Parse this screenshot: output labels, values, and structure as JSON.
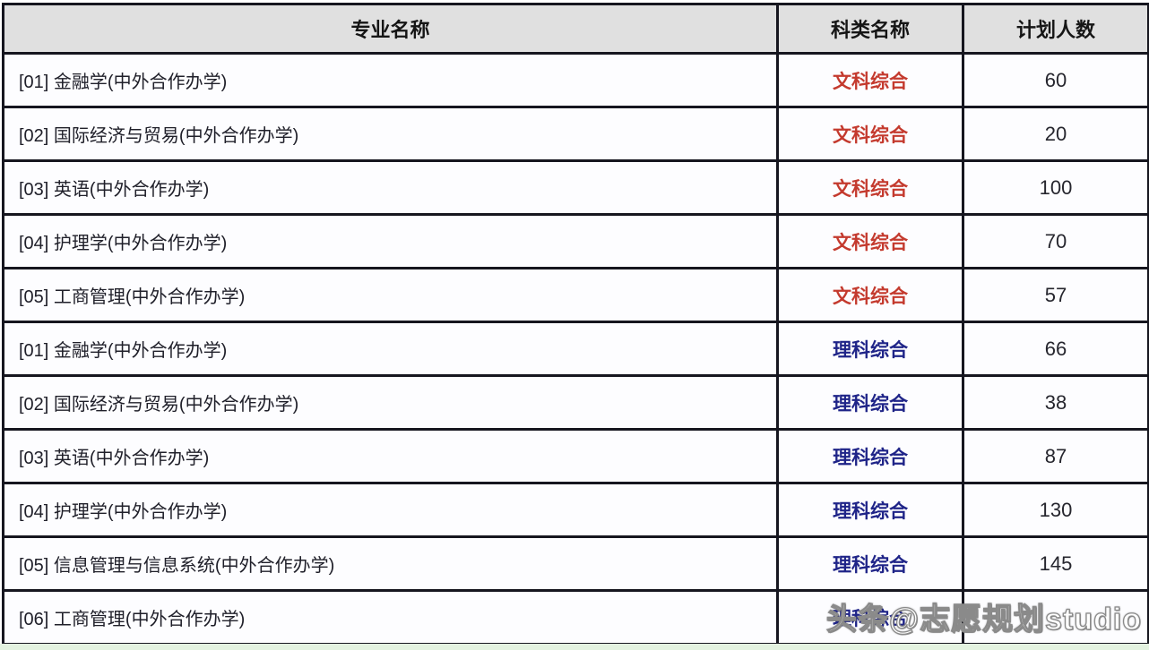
{
  "table": {
    "headers": {
      "major": "专业名称",
      "category": "科类名称",
      "plan": "计划人数"
    },
    "rows": [
      {
        "major": "[01] 金融学(中外合作办学)",
        "category": "文科综合",
        "type": "liberal_arts",
        "plan": "60"
      },
      {
        "major": "[02] 国际经济与贸易(中外合作办学)",
        "category": "文科综合",
        "type": "liberal_arts",
        "plan": "20"
      },
      {
        "major": "[03] 英语(中外合作办学)",
        "category": "文科综合",
        "type": "liberal_arts",
        "plan": "100"
      },
      {
        "major": "[04] 护理学(中外合作办学)",
        "category": "文科综合",
        "type": "liberal_arts",
        "plan": "70"
      },
      {
        "major": "[05] 工商管理(中外合作办学)",
        "category": "文科综合",
        "type": "liberal_arts",
        "plan": "57"
      },
      {
        "major": "[01] 金融学(中外合作办学)",
        "category": "理科综合",
        "type": "science",
        "plan": "66"
      },
      {
        "major": "[02] 国际经济与贸易(中外合作办学)",
        "category": "理科综合",
        "type": "science",
        "plan": "38"
      },
      {
        "major": "[03] 英语(中外合作办学)",
        "category": "理科综合",
        "type": "science",
        "plan": "87"
      },
      {
        "major": "[04] 护理学(中外合作办学)",
        "category": "理科综合",
        "type": "science",
        "plan": "130"
      },
      {
        "major": "[05] 信息管理与信息系统(中外合作办学)",
        "category": "理科综合",
        "type": "science",
        "plan": "145"
      },
      {
        "major": "[06] 工商管理(中外合作办学)",
        "category": "理科综合",
        "type": "science",
        "plan": ""
      }
    ]
  },
  "watermark": {
    "text": "头条@志愿规划studio"
  },
  "colors": {
    "liberal_arts": "#c43a2e",
    "science": "#1f2488",
    "border": "#16161f",
    "header_bg": "#e0e0e0",
    "cell_bg": "#fdfdff",
    "bottom_strip": "#e3f2e0"
  }
}
